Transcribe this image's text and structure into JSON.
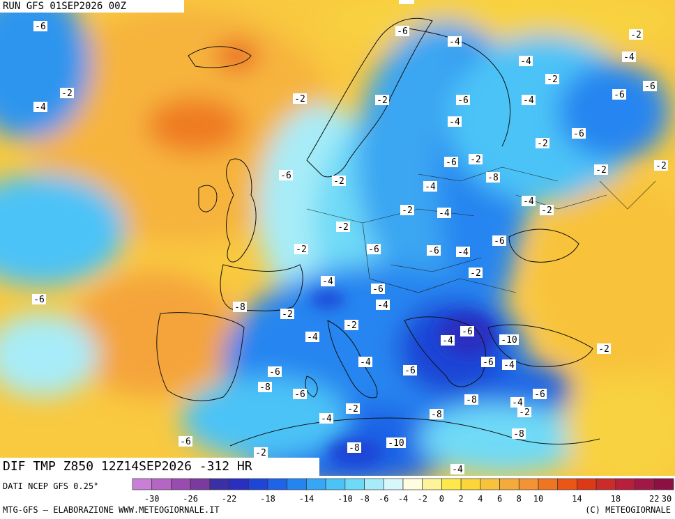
{
  "header": {
    "run_label": "RUN GFS 01SEP2026 00Z",
    "field_title": "DIF TMP Z850 12Z14SEP2026 -312 HR"
  },
  "footer": {
    "source": "DATI NCEP GFS 0.25°",
    "credit_left": "MTG-GFS – ELABORAZIONE WWW.METEOGIORNALE.IT",
    "credit_right": "(C) METEOGIORNALE"
  },
  "legend": {
    "tick_labels": [
      "-30",
      "-26",
      "-22",
      "-18",
      "-14",
      "-10",
      "-8",
      "-6",
      "-4",
      "-2",
      "0",
      "2",
      "4",
      "6",
      "8",
      "10",
      "14",
      "18",
      "22",
      "30"
    ],
    "colors": [
      "#c97fd6",
      "#b565c4",
      "#9a4bb0",
      "#7a3a9e",
      "#3b2fa6",
      "#2a2fc0",
      "#1f45d6",
      "#1f63e6",
      "#2585f0",
      "#36a6f5",
      "#4cc3f7",
      "#6fdaf7",
      "#a7ecf8",
      "#d8f7fb",
      "#fffde0",
      "#fff49a",
      "#ffe84a",
      "#fcd638",
      "#f8c23a",
      "#f5ab3b",
      "#f39333",
      "#ef7523",
      "#e95616",
      "#dc3a17",
      "#cb2c2a",
      "#b81f3b",
      "#a11846",
      "#8c1044"
    ]
  },
  "contour_labels": [
    {
      "text": "-6",
      "lon_idx": 0
    },
    {
      "text": "-2"
    },
    {
      "text": "-4"
    },
    {
      "text": "-6"
    }
  ],
  "labels": [
    "-6",
    "-6",
    "-4",
    "-2",
    "-2",
    "-2",
    "-4",
    "-6",
    "-2",
    "-2",
    "-6",
    "-4",
    "-4",
    "-6",
    "-2",
    "-2",
    "-4",
    "-6",
    "-2",
    "-2",
    "-4",
    "-6",
    "-2",
    "-6",
    "-8",
    "-4",
    "-4",
    "-2",
    "-2",
    "-2",
    "-2",
    "-4",
    "-2",
    "-6",
    "-6",
    "-4",
    "-6",
    "-2",
    "-4",
    "-6",
    "-4",
    "-6",
    "-4",
    "-10",
    "-8",
    "-6",
    "-2",
    "-2",
    "-4",
    "-6",
    "-6",
    "-4",
    "-2",
    "-4",
    "-6",
    "-8",
    "-6",
    "-8",
    "-4",
    "-6",
    "-2",
    "-8",
    "-2",
    "-4",
    "-6",
    "-8",
    "-10",
    "-8",
    "-4",
    "-2"
  ]
}
